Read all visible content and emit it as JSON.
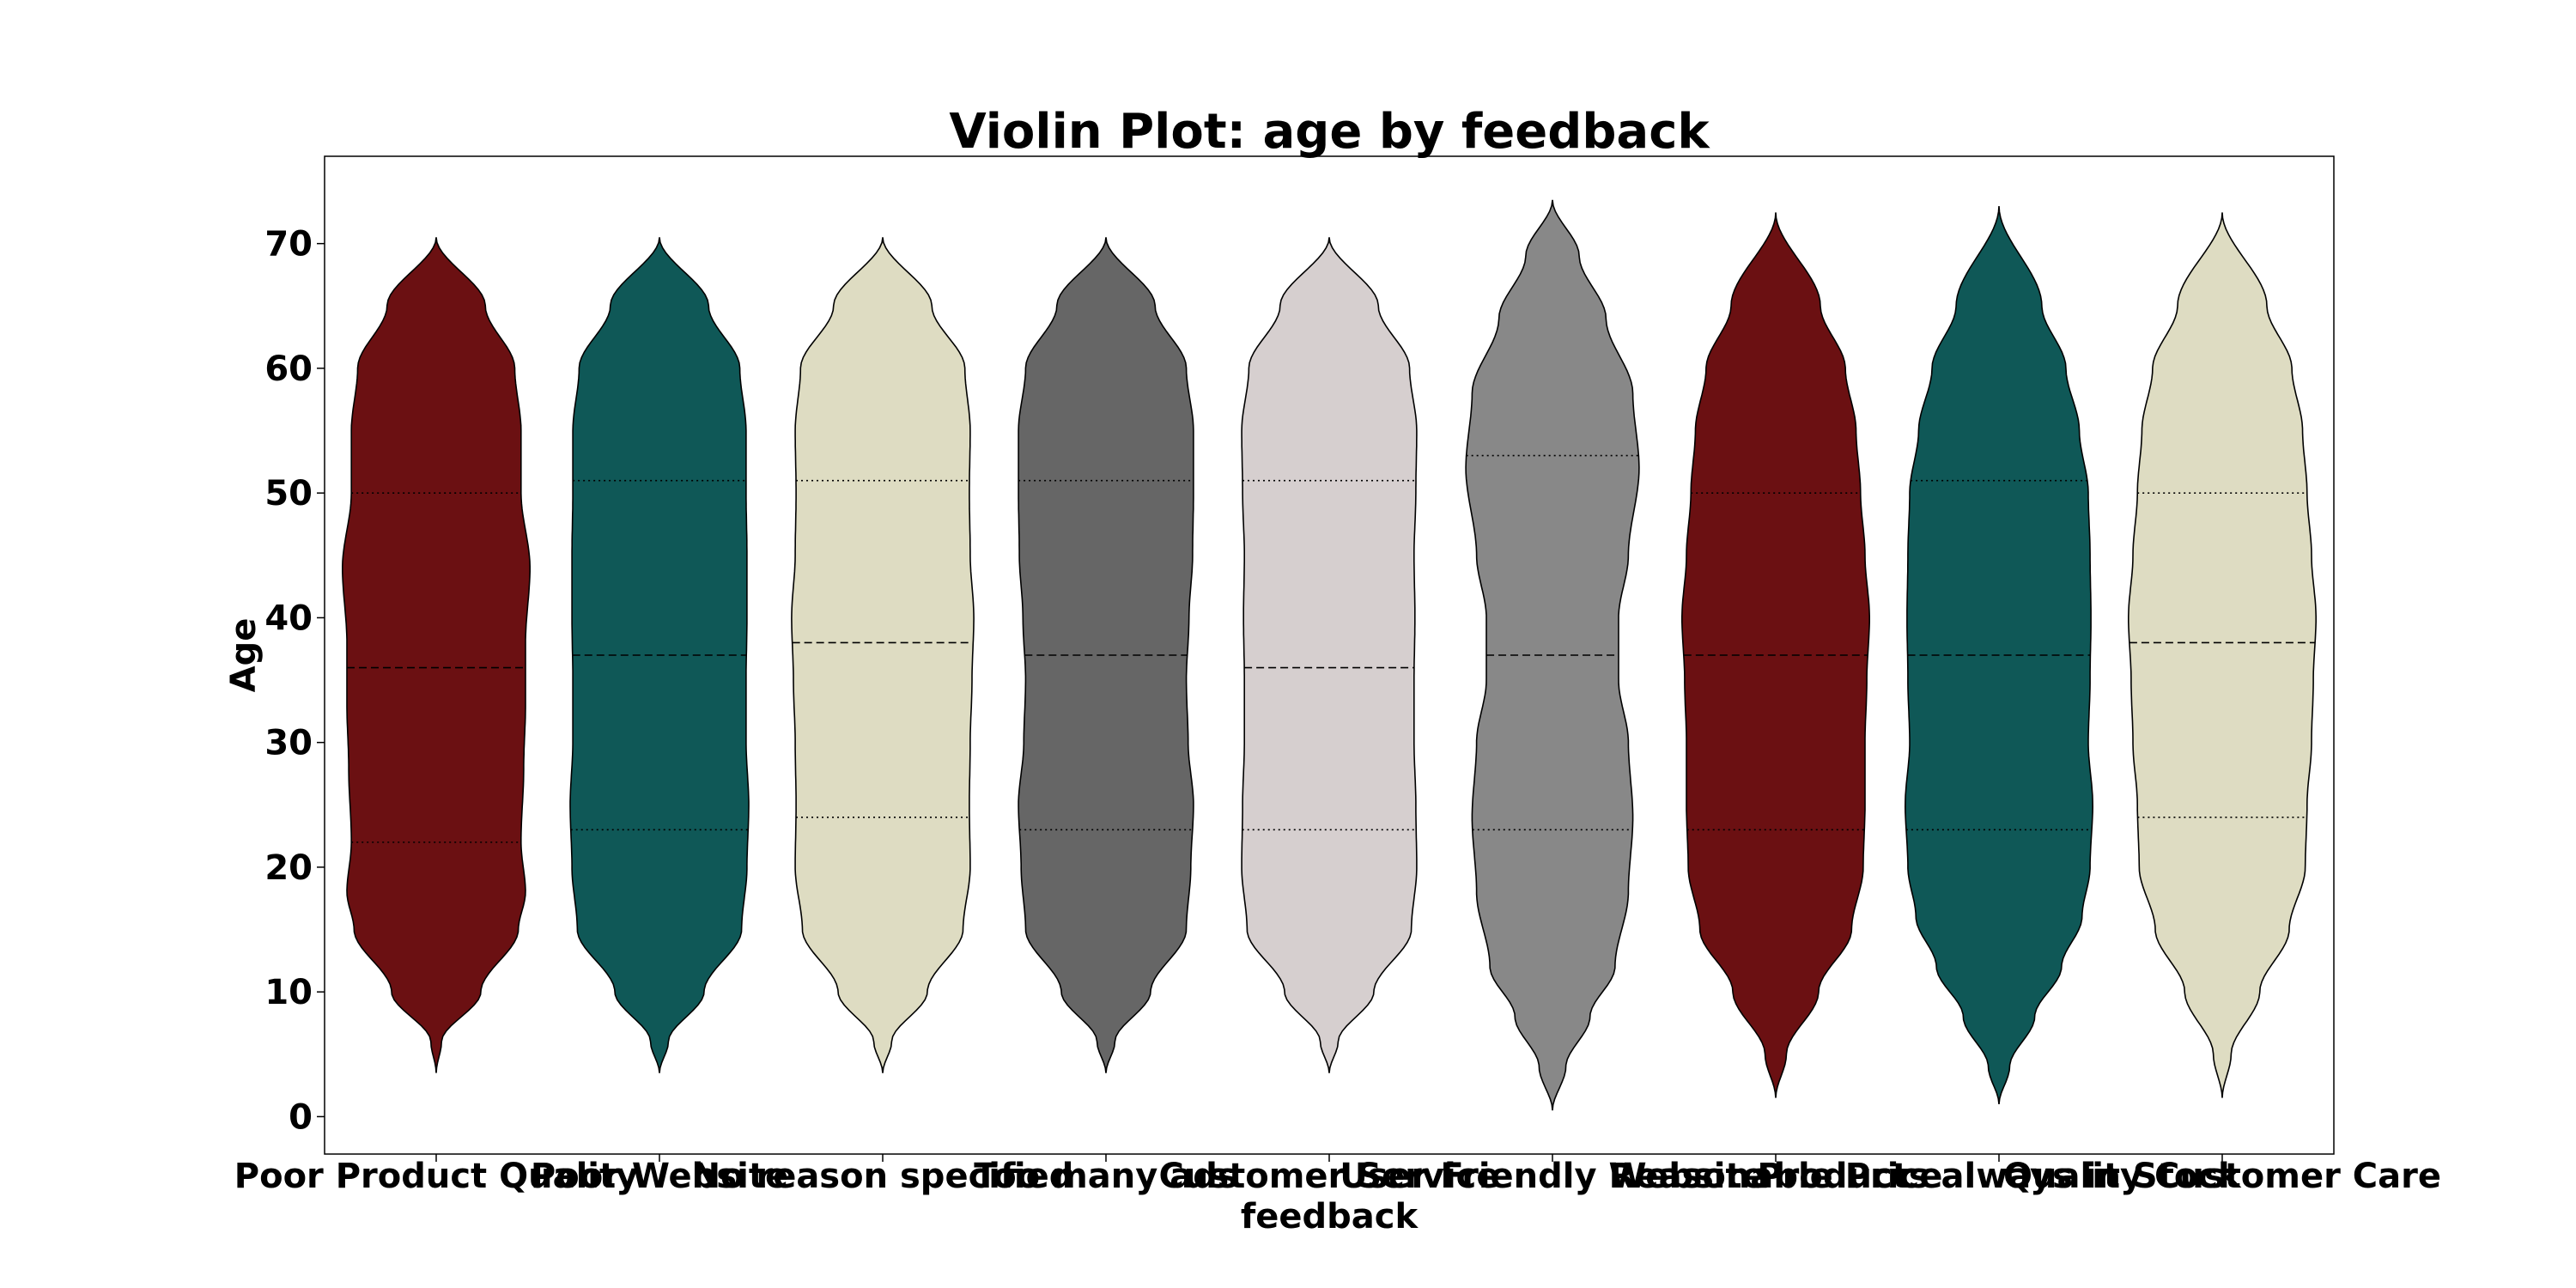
{
  "chart_data": {
    "type": "violin",
    "title": "Violin Plot: age by feedback",
    "xlabel": "feedback",
    "ylabel": "Age",
    "ylim": [
      -3,
      77
    ],
    "yticks": [
      0,
      10,
      20,
      30,
      40,
      50,
      60,
      70
    ],
    "grid": false,
    "categories": [
      "Poor Product Quality",
      "Poor Website",
      "No reason specified",
      "Too many ads",
      "Customer Service",
      "User Friendly Website",
      "Reasonable Price",
      "Products always in Stock",
      "Quality Customer Care"
    ],
    "colors": [
      "#6b1012",
      "#0f5857",
      "#dedcc2",
      "#666666",
      "#d6cfcf",
      "#888888",
      "#6b1012",
      "#0f5857",
      "#dedcc2"
    ],
    "violins": [
      {
        "min": 3.5,
        "max": 70.5,
        "q1": 22,
        "median": 36,
        "q3": 50,
        "width_profile": [
          [
            3.5,
            0
          ],
          [
            6,
            0.06
          ],
          [
            10,
            0.5
          ],
          [
            15,
            0.92
          ],
          [
            18,
            1.0
          ],
          [
            22,
            0.95
          ],
          [
            28,
            0.98
          ],
          [
            33,
            1.0
          ],
          [
            38,
            1.0
          ],
          [
            44,
            1.05
          ],
          [
            50,
            0.95
          ],
          [
            55,
            0.95
          ],
          [
            60,
            0.88
          ],
          [
            65,
            0.55
          ],
          [
            70.5,
            0
          ]
        ]
      },
      {
        "min": 3.5,
        "max": 70.5,
        "q1": 23,
        "median": 37,
        "q3": 51,
        "width_profile": [
          [
            3.5,
            0
          ],
          [
            6,
            0.1
          ],
          [
            10,
            0.5
          ],
          [
            15,
            0.92
          ],
          [
            20,
            0.98
          ],
          [
            25,
            1.0
          ],
          [
            30,
            0.97
          ],
          [
            35,
            0.97
          ],
          [
            40,
            0.98
          ],
          [
            45,
            0.98
          ],
          [
            50,
            0.97
          ],
          [
            55,
            0.97
          ],
          [
            60,
            0.9
          ],
          [
            65,
            0.55
          ],
          [
            70.5,
            0
          ]
        ]
      },
      {
        "min": 3.5,
        "max": 70.5,
        "q1": 24,
        "median": 38,
        "q3": 51,
        "width_profile": [
          [
            3.5,
            0
          ],
          [
            6,
            0.1
          ],
          [
            10,
            0.5
          ],
          [
            15,
            0.9
          ],
          [
            20,
            0.98
          ],
          [
            25,
            0.97
          ],
          [
            30,
            0.98
          ],
          [
            35,
            1.0
          ],
          [
            40,
            1.02
          ],
          [
            45,
            0.98
          ],
          [
            50,
            0.97
          ],
          [
            55,
            0.98
          ],
          [
            60,
            0.92
          ],
          [
            65,
            0.55
          ],
          [
            70.5,
            0
          ]
        ]
      },
      {
        "min": 3.5,
        "max": 70.5,
        "q1": 23,
        "median": 37,
        "q3": 51,
        "width_profile": [
          [
            3.5,
            0
          ],
          [
            6,
            0.1
          ],
          [
            10,
            0.5
          ],
          [
            15,
            0.9
          ],
          [
            20,
            0.95
          ],
          [
            25,
            0.98
          ],
          [
            30,
            0.92
          ],
          [
            35,
            0.9
          ],
          [
            40,
            0.93
          ],
          [
            45,
            0.97
          ],
          [
            50,
            0.98
          ],
          [
            55,
            0.98
          ],
          [
            60,
            0.9
          ],
          [
            65,
            0.55
          ],
          [
            70.5,
            0
          ]
        ]
      },
      {
        "min": 3.5,
        "max": 70.5,
        "q1": 23,
        "median": 36,
        "q3": 51,
        "width_profile": [
          [
            3.5,
            0
          ],
          [
            6,
            0.1
          ],
          [
            10,
            0.5
          ],
          [
            15,
            0.92
          ],
          [
            20,
            0.98
          ],
          [
            25,
            0.97
          ],
          [
            30,
            0.95
          ],
          [
            35,
            0.95
          ],
          [
            40,
            0.96
          ],
          [
            45,
            0.95
          ],
          [
            50,
            0.97
          ],
          [
            55,
            0.98
          ],
          [
            60,
            0.9
          ],
          [
            65,
            0.55
          ],
          [
            70.5,
            0
          ]
        ]
      },
      {
        "min": 0.5,
        "max": 73.5,
        "q1": 23,
        "median": 37,
        "q3": 53,
        "width_profile": [
          [
            0.5,
            0
          ],
          [
            4,
            0.15
          ],
          [
            8,
            0.42
          ],
          [
            12,
            0.7
          ],
          [
            18,
            0.85
          ],
          [
            24,
            0.9
          ],
          [
            30,
            0.85
          ],
          [
            35,
            0.74
          ],
          [
            40,
            0.74
          ],
          [
            45,
            0.85
          ],
          [
            52,
            0.97
          ],
          [
            58,
            0.9
          ],
          [
            64,
            0.6
          ],
          [
            69,
            0.3
          ],
          [
            73.5,
            0
          ]
        ]
      },
      {
        "min": 1.5,
        "max": 72.5,
        "q1": 23,
        "median": 37,
        "q3": 50,
        "width_profile": [
          [
            1.5,
            0
          ],
          [
            5,
            0.12
          ],
          [
            10,
            0.48
          ],
          [
            15,
            0.85
          ],
          [
            20,
            0.98
          ],
          [
            25,
            1.0
          ],
          [
            30,
            1.0
          ],
          [
            35,
            1.02
          ],
          [
            40,
            1.05
          ],
          [
            45,
            1.0
          ],
          [
            50,
            0.95
          ],
          [
            55,
            0.9
          ],
          [
            60,
            0.78
          ],
          [
            65,
            0.5
          ],
          [
            72.5,
            0
          ]
        ]
      },
      {
        "min": 1,
        "max": 73,
        "q1": 23,
        "median": 37,
        "q3": 51,
        "width_profile": [
          [
            1,
            0
          ],
          [
            4,
            0.12
          ],
          [
            8,
            0.4
          ],
          [
            12,
            0.7
          ],
          [
            16,
            0.93
          ],
          [
            20,
            1.02
          ],
          [
            25,
            1.05
          ],
          [
            30,
            1.0
          ],
          [
            35,
            1.02
          ],
          [
            40,
            1.03
          ],
          [
            45,
            1.02
          ],
          [
            50,
            1.0
          ],
          [
            55,
            0.9
          ],
          [
            60,
            0.75
          ],
          [
            65,
            0.48
          ],
          [
            73,
            0
          ]
        ]
      },
      {
        "min": 1.5,
        "max": 72.5,
        "q1": 24,
        "median": 38,
        "q3": 50,
        "width_profile": [
          [
            1.5,
            0
          ],
          [
            5,
            0.1
          ],
          [
            10,
            0.42
          ],
          [
            15,
            0.75
          ],
          [
            20,
            0.93
          ],
          [
            25,
            0.95
          ],
          [
            30,
            1.0
          ],
          [
            35,
            1.02
          ],
          [
            40,
            1.05
          ],
          [
            45,
            1.0
          ],
          [
            50,
            0.95
          ],
          [
            55,
            0.9
          ],
          [
            60,
            0.78
          ],
          [
            65,
            0.5
          ],
          [
            72.5,
            0
          ]
        ]
      }
    ]
  }
}
